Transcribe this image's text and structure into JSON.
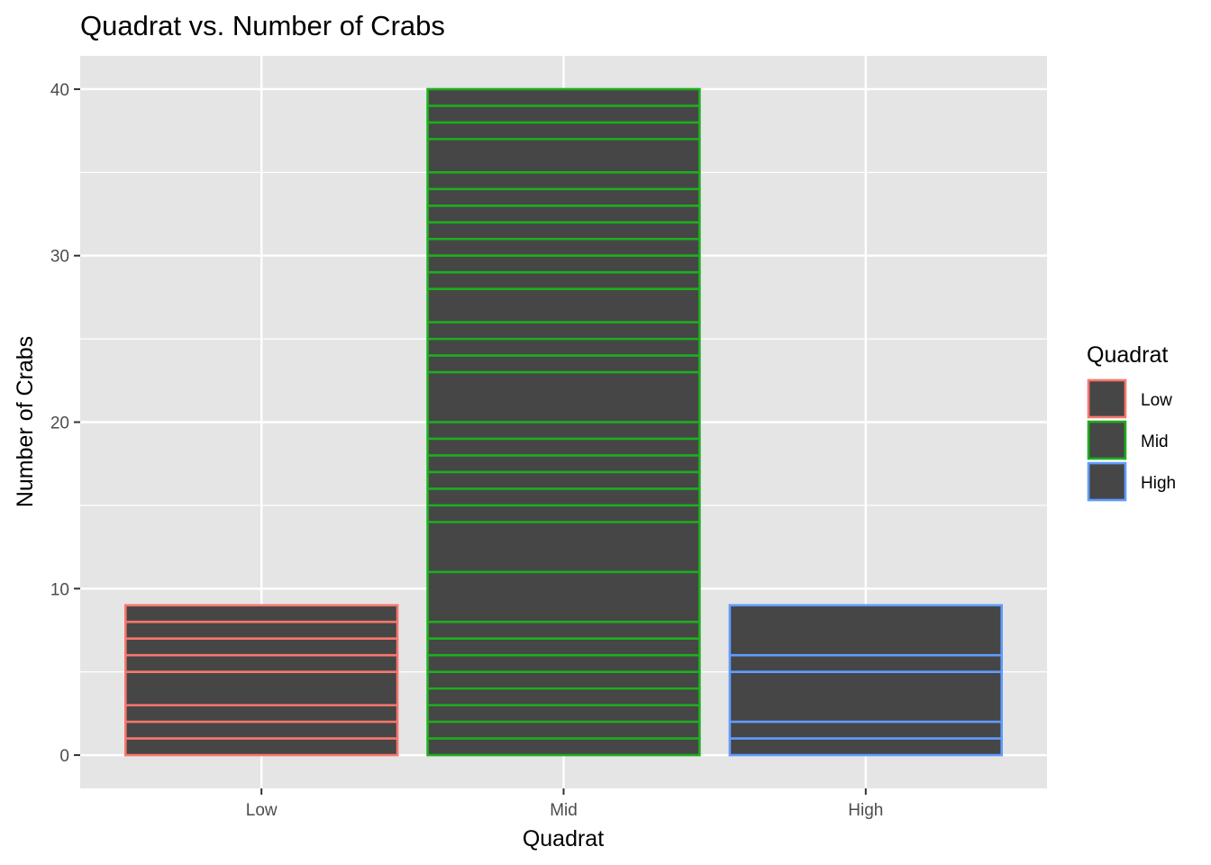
{
  "chart_data": {
    "type": "bar",
    "title": "Quadrat vs. Number of Crabs",
    "xlabel": "Quadrat",
    "ylabel": "Number of Crabs",
    "categories": [
      "Low",
      "Mid",
      "High"
    ],
    "values": [
      9,
      40,
      9
    ],
    "segment_boundaries": [
      [
        1,
        2,
        3,
        5,
        6,
        7,
        8
      ],
      [
        1,
        2,
        3,
        4,
        5,
        6,
        7,
        8,
        11,
        14,
        15,
        16,
        17,
        18,
        19,
        20,
        23,
        24,
        25,
        26,
        28,
        29,
        30,
        31,
        32,
        33,
        34,
        35,
        37,
        38,
        39
      ],
      [
        1,
        2,
        5,
        6
      ]
    ],
    "ylim": [
      -2,
      42
    ],
    "yticks": [
      0,
      10,
      20,
      30,
      40
    ],
    "grid": true,
    "legend": {
      "title": "Quadrat",
      "placement": "right",
      "entries": [
        "Low",
        "Mid",
        "High"
      ]
    },
    "colors": {
      "bar_fill": "#464646",
      "Low": "#F8766D",
      "Mid": "#1DAF1D",
      "High": "#619CFF",
      "panel_bg": "#E5E5E5",
      "grid": "#FFFFFF"
    }
  }
}
